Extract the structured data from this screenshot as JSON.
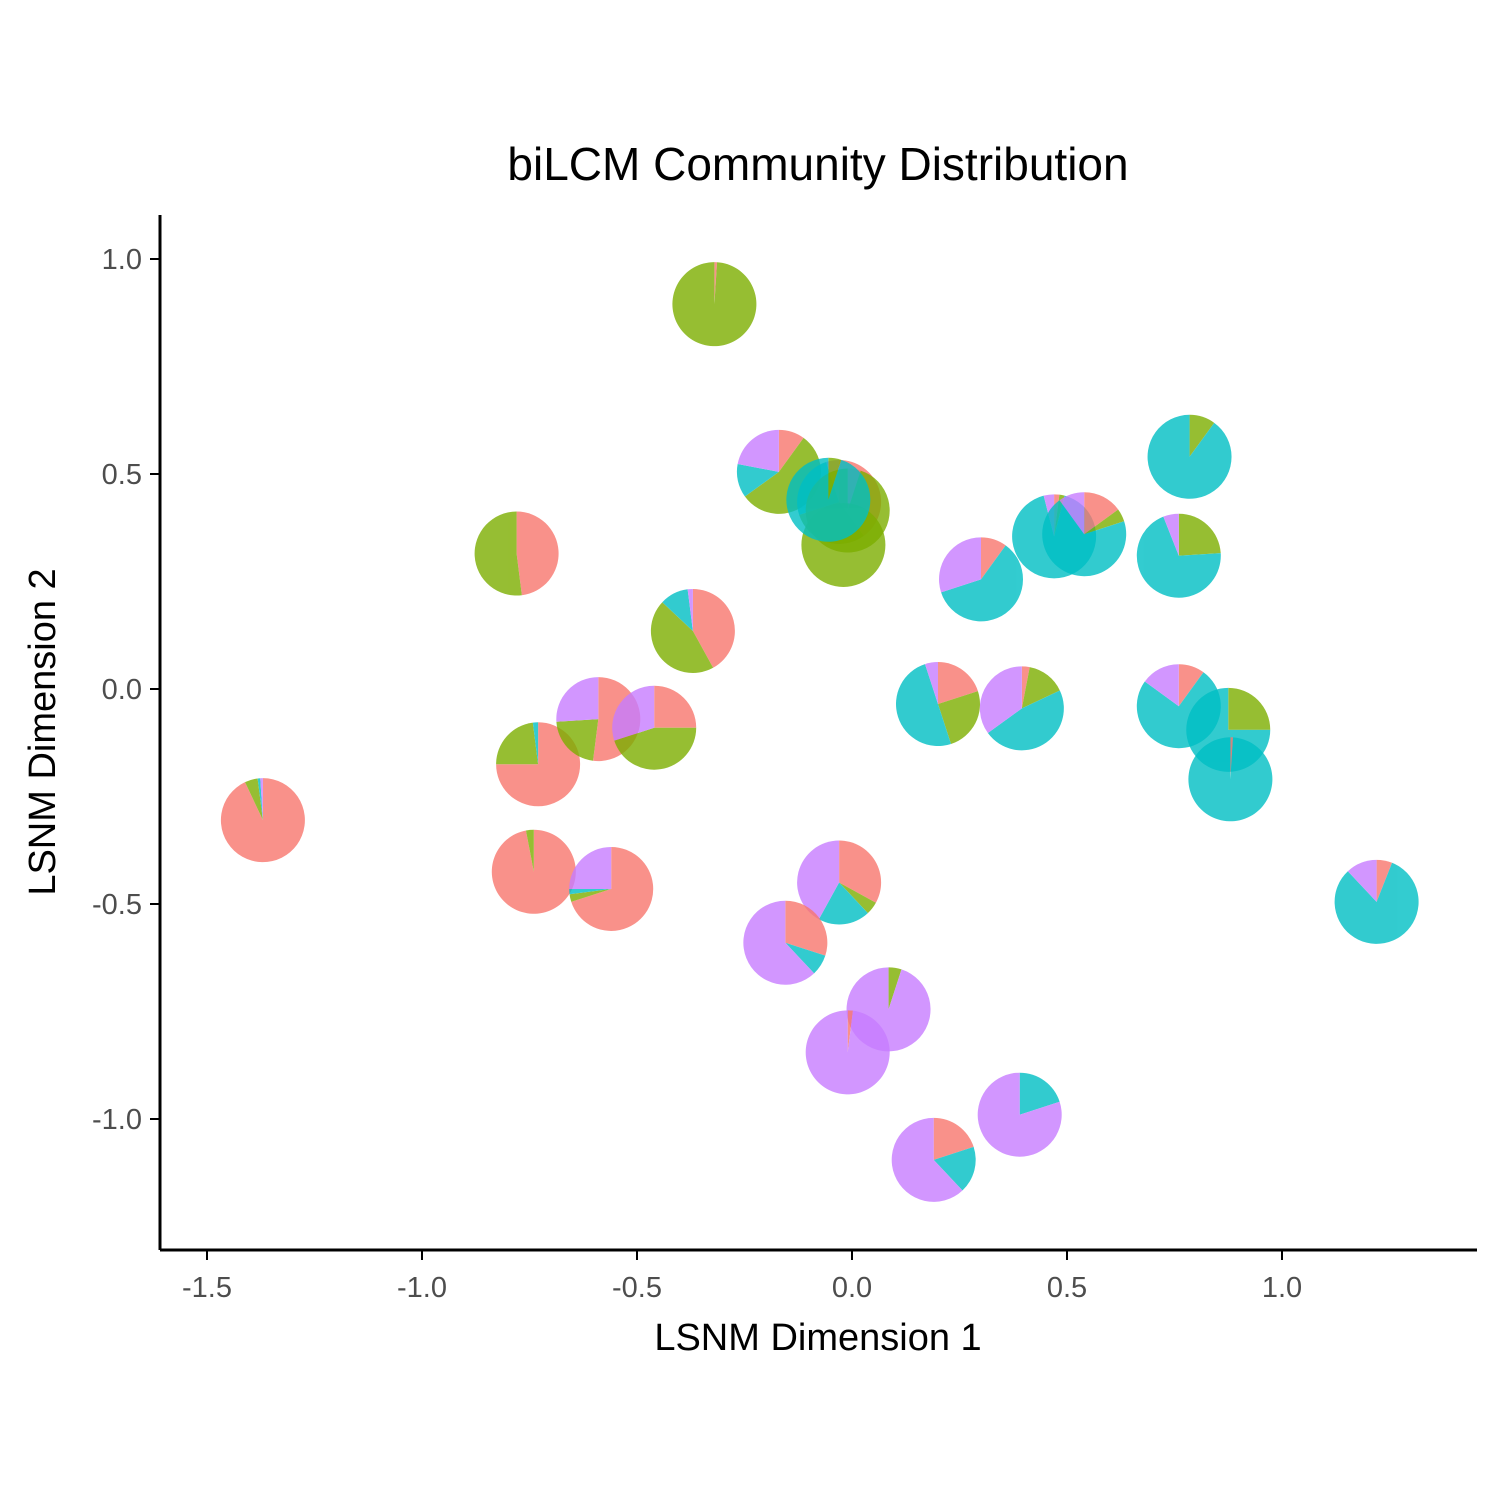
{
  "chart_data": {
    "type": "scatter",
    "title": "biLCM Community Distribution",
    "xlabel": "LSNM Dimension 1",
    "ylabel": "LSNM Dimension 2",
    "xlim": [
      -1.6,
      1.45
    ],
    "ylim": [
      -1.3,
      1.1
    ],
    "x_ticks": [
      {
        "value": -1.5,
        "label": "-1.5"
      },
      {
        "value": -1.0,
        "label": "-1.0"
      },
      {
        "value": -0.5,
        "label": "-0.5"
      },
      {
        "value": 0.0,
        "label": "0.0"
      },
      {
        "value": 0.5,
        "label": "0.5"
      },
      {
        "value": 1.0,
        "label": "1.0"
      }
    ],
    "y_ticks": [
      {
        "value": 1.0,
        "label": "1.0"
      },
      {
        "value": 0.5,
        "label": "0.5"
      },
      {
        "value": 0.0,
        "label": "0.0"
      },
      {
        "value": -0.5,
        "label": "-0.5"
      },
      {
        "value": -1.0,
        "label": "-1.0"
      }
    ],
    "grid": false,
    "legend": "none",
    "marker": "pie",
    "slice_colors": [
      "#F8766D",
      "#7CAE00",
      "#00BFC4",
      "#C77CFF"
    ],
    "slice_order_note": "community shares per point: [red, green, cyan, purple]",
    "points": [
      {
        "x": -0.32,
        "y": 0.895,
        "shares": [
          0.01,
          0.99,
          0.0,
          0.0
        ]
      },
      {
        "x": -0.78,
        "y": 0.315,
        "shares": [
          0.48,
          0.52,
          0.0,
          0.0
        ]
      },
      {
        "x": -1.37,
        "y": -0.305,
        "shares": [
          0.93,
          0.05,
          0.01,
          0.01
        ]
      },
      {
        "x": -0.73,
        "y": -0.175,
        "shares": [
          0.75,
          0.23,
          0.02,
          0.0
        ]
      },
      {
        "x": -0.74,
        "y": -0.425,
        "shares": [
          0.97,
          0.03,
          0.0,
          0.0
        ]
      },
      {
        "x": -0.59,
        "y": -0.07,
        "shares": [
          0.52,
          0.22,
          0.0,
          0.26
        ]
      },
      {
        "x": -0.46,
        "y": -0.09,
        "shares": [
          0.25,
          0.45,
          0.0,
          0.3
        ]
      },
      {
        "x": -0.56,
        "y": -0.465,
        "shares": [
          0.7,
          0.03,
          0.02,
          0.25
        ]
      },
      {
        "x": -0.37,
        "y": 0.135,
        "shares": [
          0.42,
          0.45,
          0.11,
          0.02
        ]
      },
      {
        "x": -0.17,
        "y": 0.505,
        "shares": [
          0.1,
          0.55,
          0.13,
          0.22
        ]
      },
      {
        "x": -0.03,
        "y": 0.435,
        "shares": [
          0.4,
          0.3,
          0.25,
          0.05
        ]
      },
      {
        "x": -0.01,
        "y": 0.415,
        "shares": [
          0.05,
          0.95,
          0.0,
          0.0
        ]
      },
      {
        "x": -0.02,
        "y": 0.335,
        "shares": [
          0.0,
          1.0,
          0.0,
          0.0
        ]
      },
      {
        "x": -0.055,
        "y": 0.44,
        "shares": [
          0.0,
          0.05,
          0.95,
          0.0
        ]
      },
      {
        "x": -0.03,
        "y": -0.45,
        "shares": [
          0.33,
          0.05,
          0.2,
          0.42
        ]
      },
      {
        "x": -0.155,
        "y": -0.59,
        "shares": [
          0.3,
          0.0,
          0.08,
          0.62
        ]
      },
      {
        "x": 0.085,
        "y": -0.745,
        "shares": [
          0.0,
          0.05,
          0.0,
          0.95
        ]
      },
      {
        "x": -0.01,
        "y": -0.845,
        "shares": [
          0.02,
          0.0,
          0.0,
          0.98
        ]
      },
      {
        "x": 0.19,
        "y": -1.095,
        "shares": [
          0.2,
          0.0,
          0.18,
          0.62
        ]
      },
      {
        "x": 0.39,
        "y": -0.99,
        "shares": [
          0.0,
          0.0,
          0.2,
          0.8
        ]
      },
      {
        "x": 0.2,
        "y": -0.035,
        "shares": [
          0.2,
          0.25,
          0.5,
          0.05
        ]
      },
      {
        "x": 0.395,
        "y": -0.045,
        "shares": [
          0.03,
          0.15,
          0.47,
          0.35
        ]
      },
      {
        "x": 0.3,
        "y": 0.255,
        "shares": [
          0.1,
          0.0,
          0.6,
          0.3
        ]
      },
      {
        "x": 0.47,
        "y": 0.355,
        "shares": [
          0.02,
          0.02,
          0.92,
          0.04
        ]
      },
      {
        "x": 0.54,
        "y": 0.36,
        "shares": [
          0.15,
          0.05,
          0.7,
          0.1
        ]
      },
      {
        "x": 0.76,
        "y": 0.31,
        "shares": [
          0.0,
          0.24,
          0.7,
          0.06
        ]
      },
      {
        "x": 0.785,
        "y": 0.54,
        "shares": [
          0.0,
          0.1,
          0.9,
          0.0
        ]
      },
      {
        "x": 0.76,
        "y": -0.04,
        "shares": [
          0.1,
          0.0,
          0.75,
          0.15
        ]
      },
      {
        "x": 0.875,
        "y": -0.095,
        "shares": [
          0.0,
          0.25,
          0.75,
          0.0
        ]
      },
      {
        "x": 0.88,
        "y": -0.21,
        "shares": [
          0.01,
          0.0,
          0.99,
          0.0
        ]
      },
      {
        "x": 1.22,
        "y": -0.495,
        "shares": [
          0.06,
          0.0,
          0.82,
          0.12
        ]
      }
    ]
  }
}
